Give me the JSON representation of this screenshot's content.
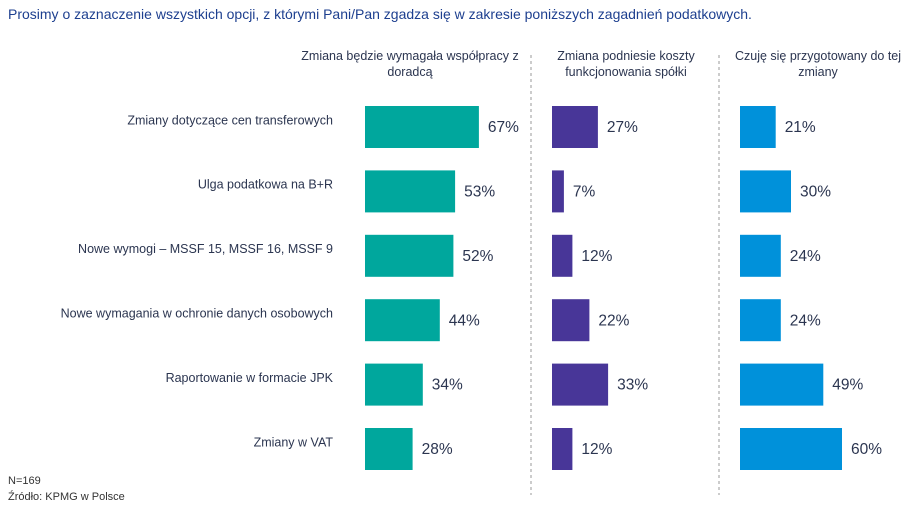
{
  "chart_data": {
    "type": "bar",
    "title": "Prosimy o zaznaczenie wszystkich opcji, z którymi Pani/Pan zgadza się w zakresie poniższych zagadnień podatkowych.",
    "categories": [
      "Zmiany dotyczące cen transferowych",
      "Ulga podatkowa na B+R",
      "Nowe wymogi – MSSF 15, MSSF 16, MSSF 9",
      "Nowe wymagania w ochronie danych osobowych",
      "Raportowanie w formacie JPK",
      "Zmiany w VAT"
    ],
    "series": [
      {
        "name": "Zmiana będzie wymagała współpracy z doradcą",
        "color": "#00a79d",
        "values": [
          67,
          53,
          52,
          44,
          34,
          28
        ],
        "value_labels": [
          "67%",
          "53%",
          "52%",
          "44%",
          "34%",
          "28%"
        ]
      },
      {
        "name": "Zmiana podniesie koszty funkcjonowania spółki",
        "color": "#483698",
        "values": [
          27,
          7,
          12,
          22,
          33,
          12
        ],
        "value_labels": [
          "27%",
          "7%",
          "12%",
          "22%",
          "33%",
          "12%"
        ]
      },
      {
        "name": "Czuję się przygotowany do tej zmiany",
        "color": "#0091da",
        "values": [
          21,
          30,
          24,
          24,
          49,
          60
        ],
        "value_labels": [
          "21%",
          "30%",
          "24%",
          "24%",
          "49%",
          "60%"
        ]
      }
    ],
    "note": "N=169",
    "source": "Źródło: KPMG w Polsce"
  }
}
